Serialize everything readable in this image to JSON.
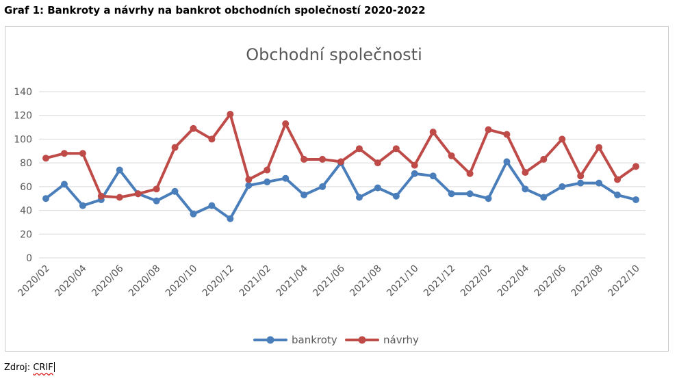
{
  "heading": "Graf 1: Bankroty a návrhy na bankrot obchodních společností 2020-2022",
  "source_label": "Zdroj:",
  "source_name": "CRIF",
  "chart_data": {
    "type": "line",
    "title": "Obchodní společnosti",
    "xlabel": "",
    "ylabel": "",
    "ylim": [
      0,
      140
    ],
    "yticks": [
      0,
      20,
      40,
      60,
      80,
      100,
      120,
      140
    ],
    "grid": true,
    "legend": "bottom",
    "x": [
      "2020/02",
      "2020/03",
      "2020/04",
      "2020/05",
      "2020/06",
      "2020/07",
      "2020/08",
      "2020/09",
      "2020/10",
      "2020/11",
      "2020/12",
      "2021/01",
      "2021/02",
      "2021/03",
      "2021/04",
      "2021/05",
      "2021/06",
      "2021/07",
      "2021/08",
      "2021/09",
      "2021/10",
      "2021/11",
      "2021/12",
      "2022/01",
      "2022/02",
      "2022/03",
      "2022/04",
      "2022/05",
      "2022/06",
      "2022/07",
      "2022/08",
      "2022/09",
      "2022/10"
    ],
    "tick_labels": [
      "2020/02",
      "2020/04",
      "2020/06",
      "2020/08",
      "2020/10",
      "2020/12",
      "2021/02",
      "2021/04",
      "2021/06",
      "2021/08",
      "2021/10",
      "2021/12",
      "2022/02",
      "2022/04",
      "2022/06",
      "2022/08",
      "2022/10"
    ],
    "series": [
      {
        "name": "bankroty",
        "color": "#4a7ebb",
        "values": [
          50,
          62,
          44,
          49,
          74,
          54,
          48,
          56,
          37,
          44,
          33,
          61,
          64,
          67,
          53,
          60,
          80,
          51,
          59,
          52,
          71,
          69,
          54,
          54,
          50,
          81,
          58,
          51,
          60,
          63,
          63,
          53,
          49
        ]
      },
      {
        "name": "návrhy",
        "color": "#be4b48",
        "values": [
          84,
          88,
          88,
          52,
          51,
          54,
          58,
          93,
          109,
          100,
          121,
          66,
          74,
          113,
          83,
          83,
          81,
          92,
          80,
          92,
          78,
          106,
          86,
          71,
          108,
          104,
          72,
          83,
          100,
          69,
          93,
          66,
          77
        ]
      }
    ]
  }
}
